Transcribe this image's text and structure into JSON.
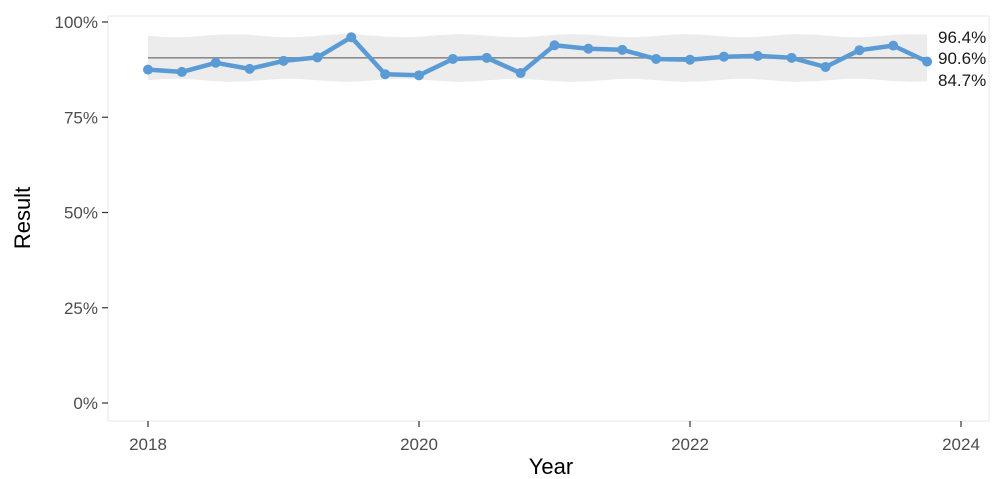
{
  "chart_data": {
    "type": "line",
    "xlabel": "Year",
    "ylabel": "Result",
    "x_ticks": [
      "2018",
      "2020",
      "2022",
      "2024"
    ],
    "y_ticks": [
      "0%",
      "25%",
      "50%",
      "75%",
      "100%"
    ],
    "xlim": [
      "2018-01-01",
      "2024-01-01"
    ],
    "ylim": [
      0,
      100
    ],
    "y_unit": "%",
    "grid": false,
    "series": [
      {
        "color": "#5b9bd5",
        "points": [
          {
            "x": "2018-01",
            "y": 87.5
          },
          {
            "x": "2018-04",
            "y": 86.9
          },
          {
            "x": "2018-07",
            "y": 89.3
          },
          {
            "x": "2018-10",
            "y": 87.7
          },
          {
            "x": "2019-01",
            "y": 89.8
          },
          {
            "x": "2019-04",
            "y": 90.7
          },
          {
            "x": "2019-07",
            "y": 96.0
          },
          {
            "x": "2019-10",
            "y": 86.3
          },
          {
            "x": "2020-01",
            "y": 86.0
          },
          {
            "x": "2020-04",
            "y": 90.3
          },
          {
            "x": "2020-07",
            "y": 90.6
          },
          {
            "x": "2020-10",
            "y": 86.6
          },
          {
            "x": "2021-01",
            "y": 93.9
          },
          {
            "x": "2021-04",
            "y": 93.0
          },
          {
            "x": "2021-07",
            "y": 92.7
          },
          {
            "x": "2021-10",
            "y": 90.3
          },
          {
            "x": "2022-01",
            "y": 90.1
          },
          {
            "x": "2022-04",
            "y": 90.9
          },
          {
            "x": "2022-07",
            "y": 91.1
          },
          {
            "x": "2022-10",
            "y": 90.6
          },
          {
            "x": "2023-01",
            "y": 88.2
          },
          {
            "x": "2023-04",
            "y": 92.6
          },
          {
            "x": "2023-07",
            "y": 93.8
          },
          {
            "x": "2023-10",
            "y": 89.6
          }
        ]
      }
    ],
    "reference": {
      "mean": 90.6,
      "upper": 96.4,
      "lower": 84.7,
      "labels": {
        "upper": "96.4%",
        "mean": "90.6%",
        "lower": "84.7%"
      },
      "line_color": "#8c8c8c",
      "band_color": "#ececec"
    }
  }
}
